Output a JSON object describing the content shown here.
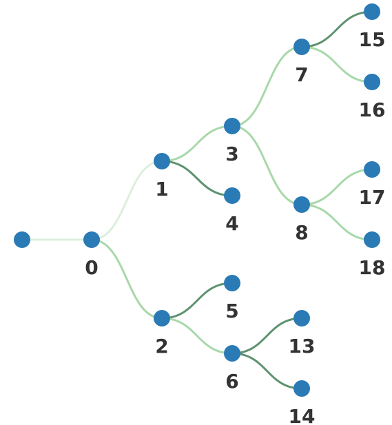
{
  "colors": {
    "node": "#2a7ab5",
    "link_light": "#dcefdc",
    "link_mid": "#a8d8aa",
    "link_dark": "#5e9270",
    "label": "#333333",
    "background": "#ffffff"
  },
  "tree": {
    "nodes": [
      {
        "id": "root",
        "label": ""
      },
      {
        "id": "0",
        "label": "0"
      },
      {
        "id": "1",
        "label": "1"
      },
      {
        "id": "2",
        "label": "2"
      },
      {
        "id": "3",
        "label": "3"
      },
      {
        "id": "4",
        "label": "4"
      },
      {
        "id": "5",
        "label": "5"
      },
      {
        "id": "6",
        "label": "6"
      },
      {
        "id": "7",
        "label": "7"
      },
      {
        "id": "8",
        "label": "8"
      },
      {
        "id": "13",
        "label": "13"
      },
      {
        "id": "14",
        "label": "14"
      },
      {
        "id": "15",
        "label": "15"
      },
      {
        "id": "16",
        "label": "16"
      },
      {
        "id": "17",
        "label": "17"
      },
      {
        "id": "18",
        "label": "18"
      }
    ],
    "links": [
      {
        "source": "root",
        "target": "0",
        "shade": "light"
      },
      {
        "source": "0",
        "target": "1",
        "shade": "light"
      },
      {
        "source": "0",
        "target": "2",
        "shade": "mid"
      },
      {
        "source": "1",
        "target": "3",
        "shade": "mid"
      },
      {
        "source": "1",
        "target": "4",
        "shade": "dark"
      },
      {
        "source": "2",
        "target": "5",
        "shade": "dark"
      },
      {
        "source": "2",
        "target": "6",
        "shade": "mid"
      },
      {
        "source": "3",
        "target": "7",
        "shade": "mid"
      },
      {
        "source": "3",
        "target": "8",
        "shade": "mid"
      },
      {
        "source": "6",
        "target": "13",
        "shade": "dark"
      },
      {
        "source": "6",
        "target": "14",
        "shade": "dark"
      },
      {
        "source": "7",
        "target": "15",
        "shade": "dark"
      },
      {
        "source": "7",
        "target": "16",
        "shade": "mid"
      },
      {
        "source": "8",
        "target": "17",
        "shade": "mid"
      },
      {
        "source": "8",
        "target": "18",
        "shade": "mid"
      }
    ]
  }
}
